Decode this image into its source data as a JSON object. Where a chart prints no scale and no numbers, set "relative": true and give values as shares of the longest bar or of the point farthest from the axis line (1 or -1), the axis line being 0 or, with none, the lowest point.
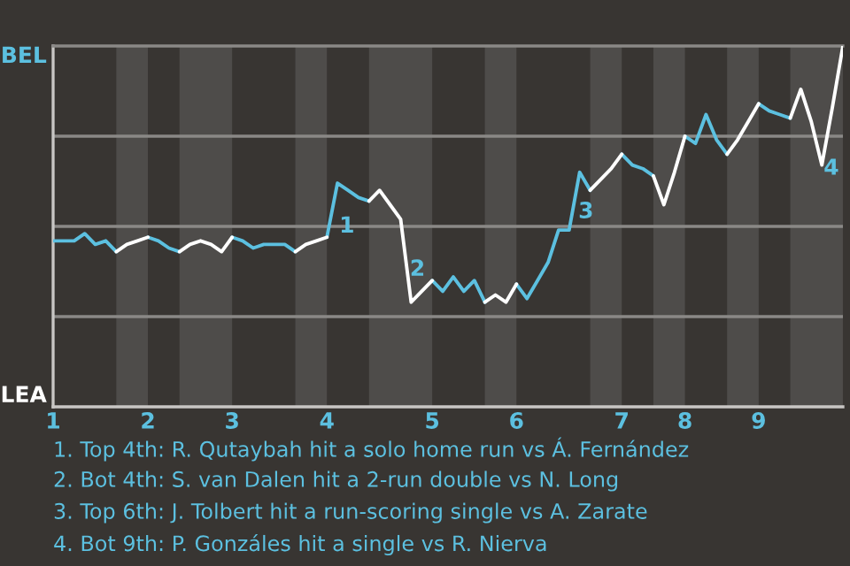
{
  "chart_data": {
    "type": "line",
    "relative": true,
    "categories": [
      "1",
      null,
      null,
      null,
      null,
      null,
      null,
      null,
      null,
      "2",
      null,
      null,
      null,
      null,
      null,
      null,
      null,
      "3",
      null,
      null,
      null,
      null,
      null,
      null,
      null,
      null,
      "4",
      null,
      null,
      null,
      null,
      null,
      null,
      null,
      null,
      null,
      "5",
      null,
      null,
      null,
      null,
      null,
      null,
      null,
      "6",
      null,
      null,
      null,
      null,
      null,
      null,
      null,
      null,
      null,
      "7",
      null,
      null,
      null,
      null,
      null,
      "8",
      null,
      null,
      null,
      null,
      null,
      null,
      "9",
      null,
      null,
      null,
      null,
      null,
      null,
      null,
      null
    ],
    "series": [
      {
        "color": "#5cc0e0",
        "values": [
          0.46,
          0.46,
          0.46,
          0.48,
          0.45,
          0.46,
          0.43,
          null,
          null,
          0.47,
          0.46,
          0.44,
          0.43,
          null,
          null,
          null,
          null,
          0.47,
          0.46,
          0.44,
          0.45,
          0.45,
          0.45,
          0.43,
          null,
          null,
          0.47,
          0.62,
          0.6,
          0.58,
          0.57,
          null,
          null,
          null,
          null,
          null,
          0.35,
          0.32,
          0.36,
          0.32,
          0.35,
          0.29,
          null,
          null,
          0.34,
          0.3,
          0.35,
          0.4,
          0.49,
          0.49,
          0.65,
          0.6,
          null,
          null,
          0.7,
          0.67,
          0.66,
          0.64,
          null,
          null,
          0.75,
          0.73,
          0.81,
          0.74,
          0.7,
          null,
          null,
          0.84,
          0.82,
          0.81,
          0.8,
          null,
          null,
          null,
          null,
          null
        ]
      },
      {
        "color": "#ffffff",
        "values": [
          null,
          null,
          null,
          null,
          null,
          null,
          0.43,
          0.45,
          0.46,
          0.47,
          null,
          null,
          0.43,
          0.45,
          0.46,
          0.45,
          0.43,
          0.47,
          null,
          null,
          null,
          null,
          null,
          0.43,
          0.45,
          0.46,
          0.47,
          null,
          null,
          null,
          0.57,
          0.6,
          0.56,
          0.52,
          0.29,
          0.32,
          0.35,
          null,
          null,
          null,
          null,
          0.29,
          0.31,
          0.29,
          0.34,
          null,
          null,
          null,
          null,
          null,
          null,
          0.6,
          0.63,
          0.66,
          0.7,
          null,
          null,
          0.64,
          0.56,
          0.65,
          0.75,
          null,
          null,
          null,
          0.7,
          0.74,
          0.79,
          0.84,
          null,
          null,
          0.8,
          0.88,
          0.79,
          0.67,
          0.83,
          1.0
        ]
      }
    ],
    "grid": "y",
    "annotations": [
      "BEL",
      "LEA",
      "1",
      "2",
      "3",
      "4",
      "1. Top 4th: R. Qutaybah hit a solo home run vs Á. Fernández",
      "2. Bot 4th: S. van Dalen hit a 2-run double vs N. Long",
      "3. Top 6th: J. Tolbert hit a run-scoring single vs A. Zarate",
      "4. Bot 9th: P. Gonzáles hit a single vs R. Nierva"
    ]
  }
}
